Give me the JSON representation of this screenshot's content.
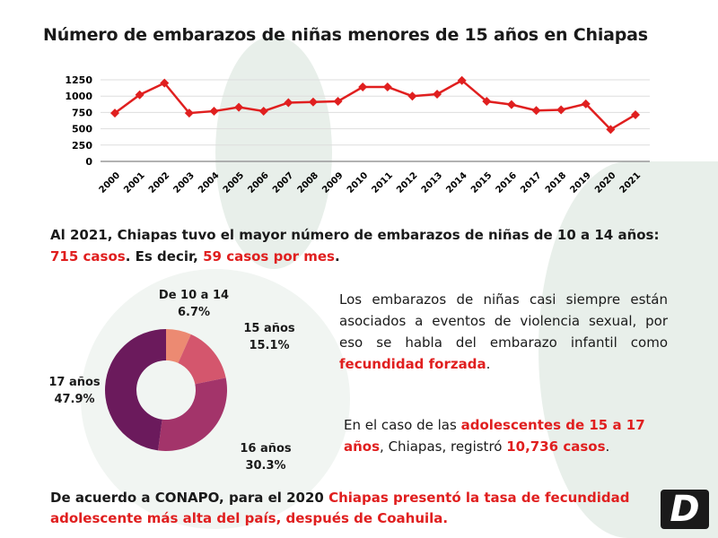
{
  "title": "Número de embarazos de niñas menores de 15 años en Chiapas",
  "chart_data": [
    {
      "type": "line",
      "title": "Número de embarazos de niñas menores de 15 años en Chiapas",
      "x": [
        "2000",
        "2001",
        "2002",
        "2003",
        "2004",
        "2005",
        "2006",
        "2007",
        "2008",
        "2009",
        "2010",
        "2011",
        "2012",
        "2013",
        "2014",
        "2015",
        "2016",
        "2017",
        "2018",
        "2019",
        "2020",
        "2021"
      ],
      "values": [
        740,
        1020,
        1200,
        740,
        770,
        830,
        770,
        900,
        910,
        920,
        1140,
        1140,
        1000,
        1030,
        1240,
        920,
        870,
        780,
        790,
        880,
        490,
        715
      ],
      "yticks": [
        0,
        250,
        500,
        750,
        1000,
        1250
      ],
      "ylim": [
        0,
        1250
      ],
      "grid": true,
      "color": "#e01f1f"
    },
    {
      "type": "pie",
      "donut": true,
      "slices": [
        {
          "label": "De 10 a 14",
          "pct_label": "6.7%",
          "value": 6.7,
          "color": "#ec8a72"
        },
        {
          "label": "15 años",
          "pct_label": "15.1%",
          "value": 15.1,
          "color": "#d4566d"
        },
        {
          "label": "16 años",
          "pct_label": "30.3%",
          "value": 30.3,
          "color": "#a3346a"
        },
        {
          "label": "17 años",
          "pct_label": "47.9%",
          "value": 47.9,
          "color": "#6b1a5c"
        }
      ]
    }
  ],
  "p1": {
    "a": "Al 2021, Chiapas tuvo el mayor número de embarazos de niñas de 10 a 14 años:",
    "b": "715 casos",
    "c": ". Es decir, ",
    "d": "59 casos por mes",
    "e": "."
  },
  "p2": {
    "a": "Los embarazos de niñas casi siempre están asociados a eventos de violencia sexual, por eso se habla del embarazo infantil como ",
    "b": "fecundidad forzada",
    "c": "."
  },
  "p3": {
    "a": "En el caso de las ",
    "b": "adolescentes de 15 a 17 años",
    "c": ", Chiapas, registró ",
    "d": "10,736 casos",
    "e": "."
  },
  "p4": {
    "a": "De acuerdo a CONAPO, para el 2020 ",
    "b": "Chiapas presentó la tasa de fecundidad adolescente más alta del país, después de Coahuila."
  },
  "logo": "D"
}
